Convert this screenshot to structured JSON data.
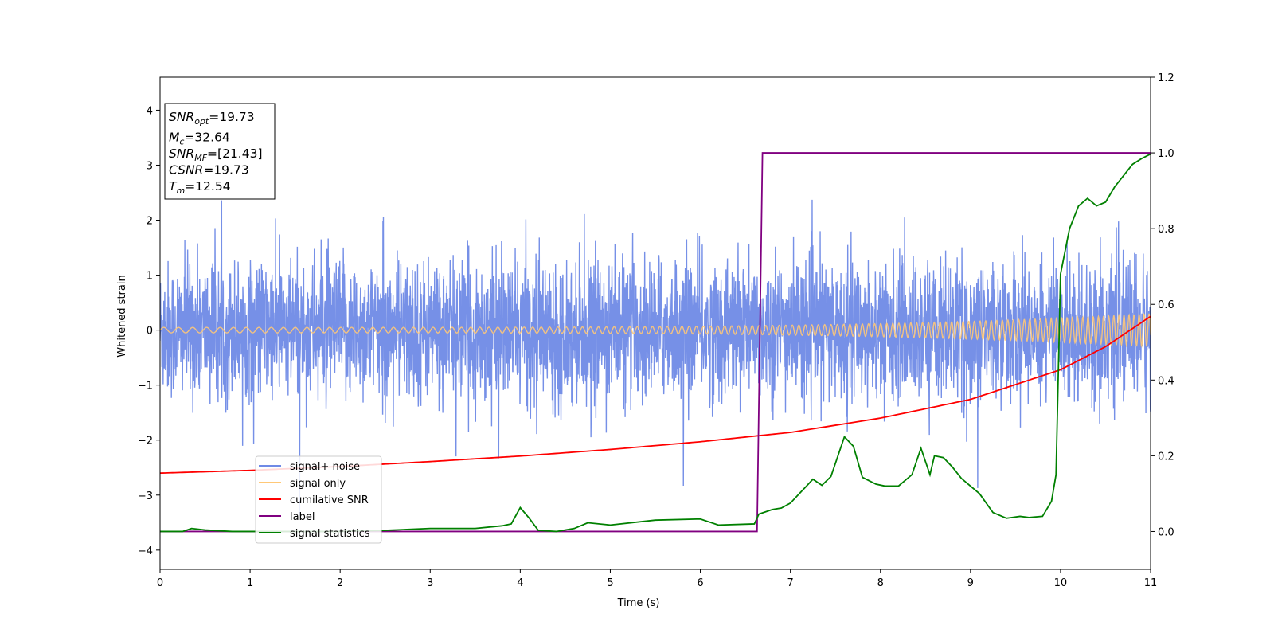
{
  "chart_data": {
    "type": "line",
    "xlabel": "Time (s)",
    "ylabel": "Whitened strain",
    "xlim": [
      0,
      11
    ],
    "ylim_left": [
      -4.35,
      4.6
    ],
    "ylim_right": [
      -0.1,
      1.2
    ],
    "x_ticks": [
      "0",
      "1",
      "2",
      "3",
      "4",
      "5",
      "6",
      "7",
      "8",
      "9",
      "10",
      "11"
    ],
    "y_ticks_left": [
      "−4",
      "−3",
      "−2",
      "−1",
      "0",
      "1",
      "2",
      "3",
      "4"
    ],
    "y_ticks_right": [
      "0.0",
      "0.2",
      "0.4",
      "0.6",
      "0.8",
      "1.0",
      "1.2"
    ],
    "info_box": [
      {
        "base": "SNR",
        "sub": "opt",
        "rest": "=19.73"
      },
      {
        "base": "M",
        "sub": "c",
        "rest": "=32.64"
      },
      {
        "base": "SNR",
        "sub": "MF",
        "rest": "=[21.43]"
      },
      {
        "base": "CSNR",
        "sub": "",
        "rest": "=19.73"
      },
      {
        "base": "T",
        "sub": "m",
        "rest": "=12.54"
      }
    ],
    "legend": {
      "placement": "lower-left",
      "entries": [
        {
          "label": "signal+ noise",
          "color": "#6f8ae6"
        },
        {
          "label": "signal only",
          "color": "#ffc877"
        },
        {
          "label": "cumilative SNR",
          "color": "#ff0000"
        },
        {
          "label": "label",
          "color": "#800080"
        },
        {
          "label": "signal statistics",
          "color": "#008000"
        }
      ]
    },
    "series": [
      {
        "name": "signal+ noise",
        "axis": "left",
        "color": "#6f8ae6",
        "description_values": {
          "typical_range": [
            -1.8,
            2.0
          ],
          "max_peak": 3.0,
          "min_peak": -3.4
        }
      },
      {
        "name": "signal only",
        "axis": "left",
        "color": "#ffc877",
        "amplitude_start": 0.05,
        "amplitude_end": 0.3
      },
      {
        "name": "cumilative SNR",
        "axis": "left",
        "color": "#ff0000",
        "x": [
          0,
          1,
          2,
          3,
          4,
          5,
          6,
          7,
          8,
          9,
          10,
          10.5,
          11
        ],
        "values": [
          -2.6,
          -2.55,
          -2.48,
          -2.39,
          -2.29,
          -2.17,
          -2.03,
          -1.86,
          -1.6,
          -1.26,
          -0.72,
          -0.3,
          0.25
        ]
      },
      {
        "name": "label",
        "axis": "right",
        "color": "#800080",
        "x": [
          0,
          6.63,
          6.69,
          11
        ],
        "values": [
          0.0,
          0.0,
          1.0,
          1.0
        ]
      },
      {
        "name": "signal statistics",
        "axis": "right",
        "color": "#008000",
        "x": [
          0,
          0.25,
          0.35,
          0.5,
          0.8,
          1.2,
          2.0,
          2.5,
          3.0,
          3.5,
          3.8,
          3.9,
          4.0,
          4.1,
          4.2,
          4.4,
          4.6,
          4.75,
          5.0,
          5.5,
          6.0,
          6.2,
          6.6,
          6.65,
          6.8,
          6.9,
          7.0,
          7.1,
          7.25,
          7.35,
          7.45,
          7.6,
          7.7,
          7.8,
          7.95,
          8.05,
          8.2,
          8.35,
          8.45,
          8.55,
          8.6,
          8.7,
          8.8,
          8.9,
          9.0,
          9.1,
          9.25,
          9.4,
          9.55,
          9.65,
          9.8,
          9.9,
          9.95,
          10.0,
          10.1,
          10.2,
          10.3,
          10.4,
          10.5,
          10.6,
          10.7,
          10.8,
          10.9,
          11.0
        ],
        "values": [
          0.0,
          0.0,
          0.008,
          0.004,
          0.0,
          0.0,
          0.0,
          0.003,
          0.008,
          0.008,
          0.015,
          0.02,
          0.063,
          0.035,
          0.003,
          0.0,
          0.008,
          0.023,
          0.017,
          0.03,
          0.033,
          0.017,
          0.02,
          0.046,
          0.058,
          0.062,
          0.075,
          0.1,
          0.138,
          0.122,
          0.145,
          0.25,
          0.225,
          0.143,
          0.125,
          0.12,
          0.12,
          0.15,
          0.22,
          0.15,
          0.2,
          0.195,
          0.17,
          0.14,
          0.12,
          0.1,
          0.05,
          0.035,
          0.04,
          0.037,
          0.04,
          0.08,
          0.15,
          0.68,
          0.8,
          0.86,
          0.88,
          0.86,
          0.87,
          0.91,
          0.94,
          0.97,
          0.985,
          0.997
        ]
      }
    ]
  }
}
